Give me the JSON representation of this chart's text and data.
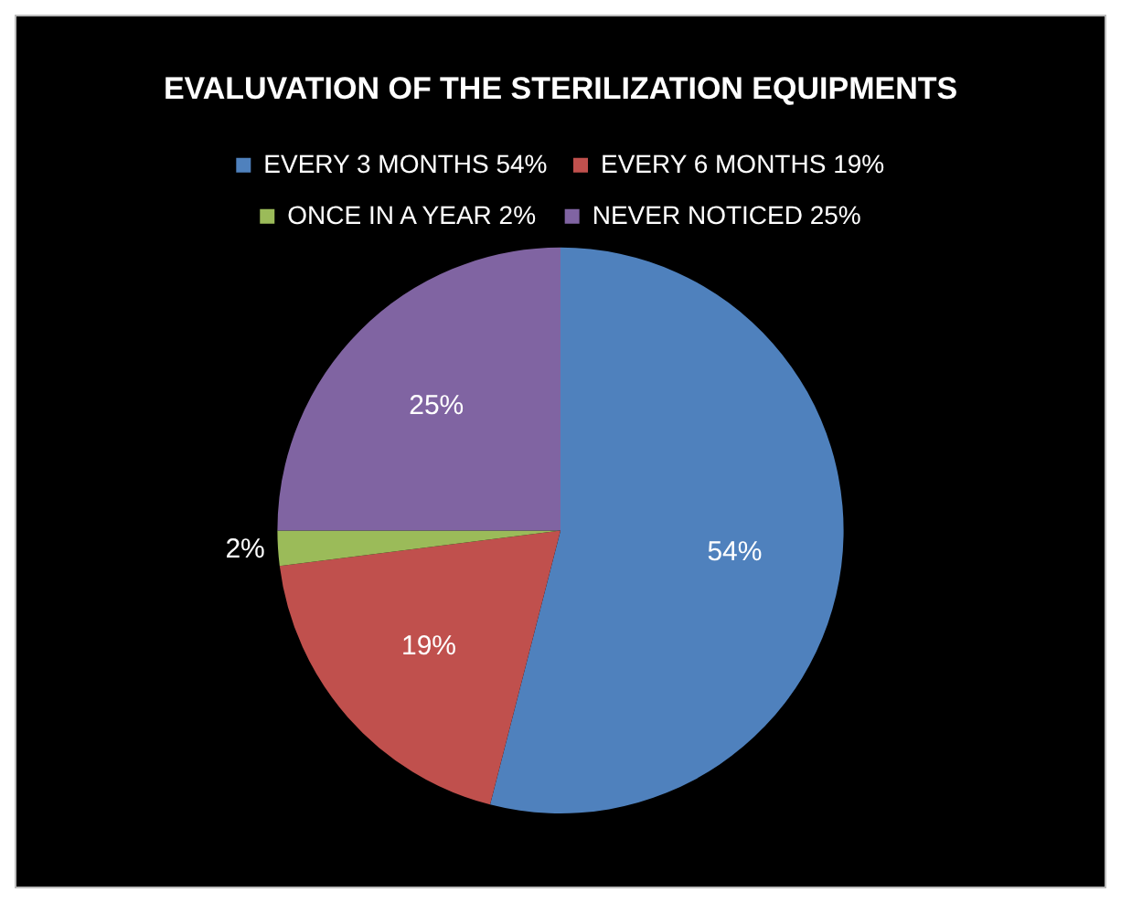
{
  "chart_data": {
    "type": "pie",
    "title": "EVALUVATION OF THE STERILIZATION EQUIPMENTS",
    "categories": [
      "EVERY 3 MONTHS 54%",
      "EVERY 6 MONTHS 19%",
      "ONCE IN A YEAR 2%",
      "NEVER NOTICED 25%"
    ],
    "values": [
      54,
      19,
      2,
      25
    ],
    "colors": [
      "#4f81bd",
      "#c0504d",
      "#9bbb59",
      "#8064a2"
    ],
    "value_labels": [
      "54%",
      "19%",
      "2%",
      "25%"
    ],
    "legend": "top"
  }
}
